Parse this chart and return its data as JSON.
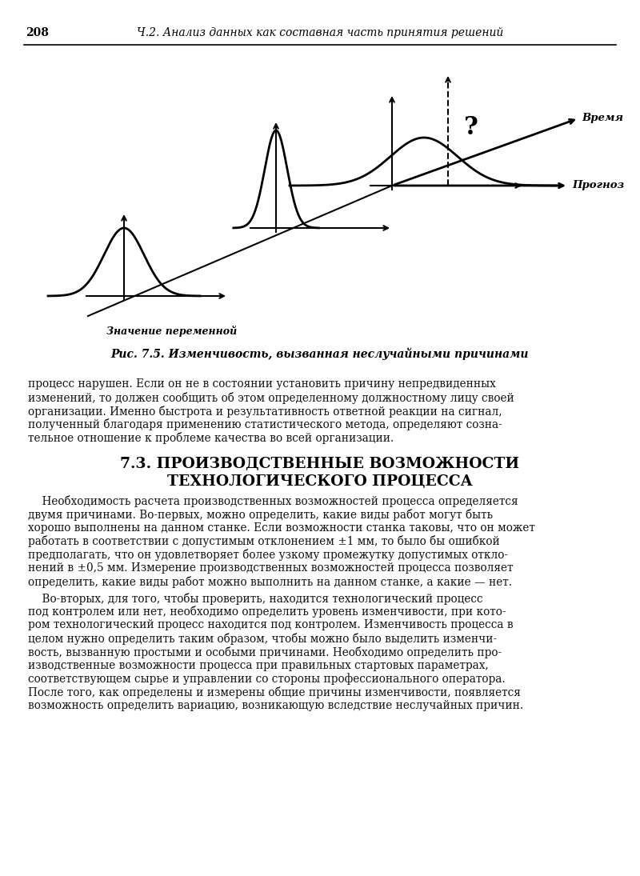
{
  "page_number": "208",
  "header_text": "Ч.2. Анализ данных как составная часть принятия решений",
  "fig_caption": "Рис. 7.5. Изменчивость, вызванная неслучайными причинами",
  "section_title": "7.3. ПРОИЗВОДСТВЕННЫЕ ВОЗМОЖНОСТИ\nТЕХНОЛОГИЧЕСКОГО ПРОЦЕССА",
  "label_x": "Значение переменной",
  "label_time": "Время",
  "label_prognoz": "Прогноз",
  "label_q": "?",
  "pre_para": "процесс нарушен. Если он не в состоянии установить причину непредвиденных изменений, то должен сообщить об этом определенному должностному лицу своей организации. Именно быстрота и результативность ответной реакции на сигнал, полученный благодаря применению статистического метода, определяют сознательное отношение к проблеме качества во всей организации.",
  "para1": "Необходимость расчета производственных возможностей процесса определяется двумя причинами. Во-первых, можно определить, какие виды работ могут быть хорошо выполнены на данном станке. Если возможности станка таковы, что он может работать в соответствии с допустимым отклонением ±1 мм, то было бы ошибкой предполагать, что он удовлетворяет более узкому промежутку допустимых откло-нений в ±0,5 мм. Измерение производственных возможностей процесса позволяет определить, какие виды работ можно выполнить на данном станке, а какие — нет.",
  "para2": "Во-вторых, для того, чтобы проверить, находится технологический процесс под контролем или нет, необходимо определить уровень изменчивости, при кото-ром технологический процесс находится под контролем. Изменчивость процесса в целом нужно определить таким образом, чтобы можно было выделить изменчи-вость, вызванную простыми и особыми причинами. Необходимо определить про-изводственные возможности процесса при правильных стартовых параметрах, соответствующем сырье и управлении со стороны профессионального оператора. После того, как определены и измерены общие причины изменчивости, появляется возможность определить вариацию, возникающую вследствие неслучайных причин.",
  "bg_color": "#ffffff",
  "text_color": "#111111"
}
